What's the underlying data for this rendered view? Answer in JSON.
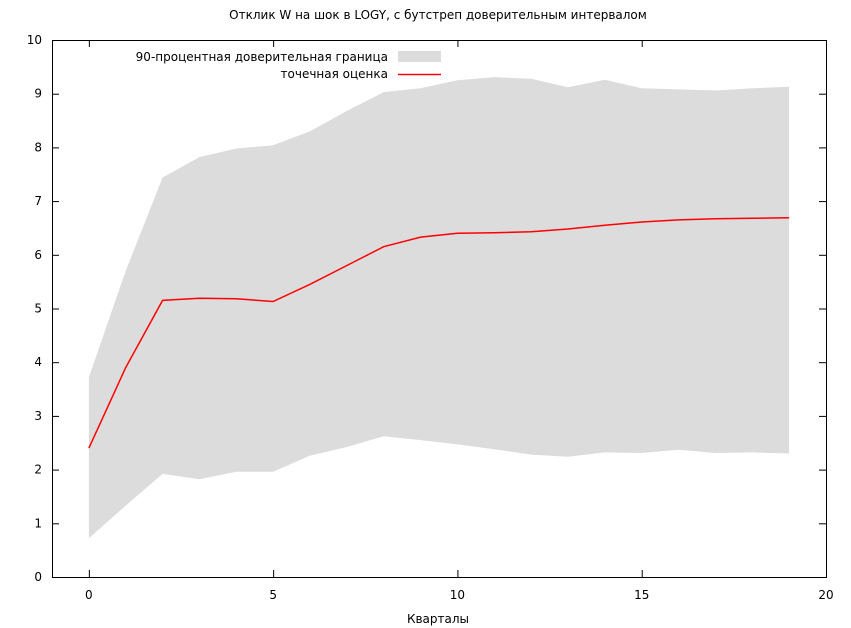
{
  "chart_data": {
    "type": "area",
    "title": "Отклик W на шок в LOGY, с бутстреп доверительным интервалом",
    "xlabel": "Кварталы",
    "ylabel": "",
    "xlim": [
      -1,
      20
    ],
    "ylim": [
      0,
      10
    ],
    "xticks": [
      0,
      5,
      10,
      15,
      20
    ],
    "yticks": [
      0,
      1,
      2,
      3,
      4,
      5,
      6,
      7,
      8,
      9,
      10
    ],
    "grid": false,
    "legend_position": "top-left",
    "legend": {
      "band_label": "90-процентная доверительная граница",
      "line_label": "точечная оценка"
    },
    "x": [
      0,
      1,
      2,
      3,
      4,
      5,
      6,
      7,
      8,
      9,
      10,
      11,
      12,
      13,
      14,
      15,
      16,
      17,
      18,
      19
    ],
    "series": [
      {
        "name": "точечная оценка",
        "type": "line",
        "color": "#ff0000",
        "values": [
          2.4,
          3.9,
          5.15,
          5.19,
          5.18,
          5.13,
          5.45,
          5.8,
          6.15,
          6.33,
          6.4,
          6.41,
          6.43,
          6.48,
          6.55,
          6.61,
          6.65,
          6.67,
          6.68,
          6.69
        ]
      },
      {
        "name": "90-процентная доверительная граница",
        "type": "band",
        "color": "#dcdcdc",
        "lower": [
          0.72,
          1.33,
          1.92,
          1.82,
          1.96,
          1.96,
          2.26,
          2.42,
          2.62,
          2.55,
          2.47,
          2.38,
          2.28,
          2.24,
          2.32,
          2.31,
          2.37,
          2.31,
          2.32,
          2.3
        ],
        "upper": [
          3.72,
          5.7,
          7.44,
          7.82,
          7.98,
          8.04,
          8.3,
          8.68,
          9.03,
          9.1,
          9.25,
          9.31,
          9.28,
          9.12,
          9.26,
          9.1,
          9.08,
          9.06,
          9.1,
          9.13
        ]
      }
    ]
  }
}
